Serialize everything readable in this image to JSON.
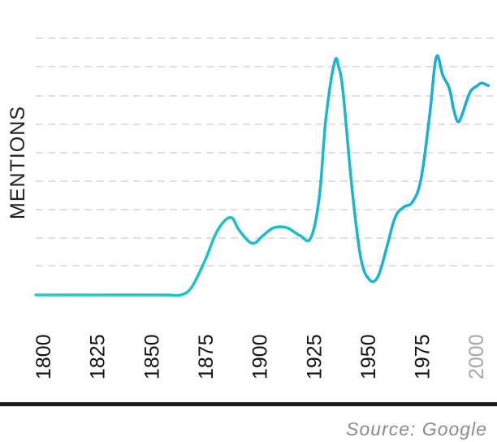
{
  "chart_data": {
    "type": "line",
    "title": "",
    "xlabel": "",
    "ylabel": "MENTIONS",
    "xlim": [
      1800,
      2010
    ],
    "ylim": [
      0,
      100
    ],
    "x_ticks": [
      "1800",
      "1825",
      "1850",
      "1875",
      "1900",
      "1925",
      "1950",
      "1975",
      "2000"
    ],
    "highlighted_tick": "2000",
    "grid": true,
    "y_tick_labels_shown": false,
    "series": [
      {
        "x": [
          1800,
          1820,
          1840,
          1860,
          1867,
          1872,
          1878,
          1884,
          1890,
          1894,
          1900,
          1905,
          1910,
          1916,
          1922,
          1927,
          1931,
          1934,
          1938,
          1940,
          1942,
          1946,
          1950,
          1954,
          1958,
          1962,
          1966,
          1970,
          1974,
          1978,
          1982,
          1985,
          1988,
          1991,
          1993,
          1995,
          1997,
          1999,
          2001,
          2004,
          2006,
          2009
        ],
        "values": [
          0,
          0,
          0,
          0,
          0,
          3,
          13,
          25,
          30,
          25,
          20,
          23,
          26,
          26,
          23,
          22,
          38,
          68,
          90,
          88,
          78,
          42,
          15,
          6,
          7,
          18,
          30,
          34,
          36,
          45,
          70,
          92,
          85,
          80,
          72,
          67,
          70,
          75,
          79,
          81,
          82,
          81
        ]
      }
    ],
    "colors": {
      "line_start": "#1fcfc0",
      "line_end": "#19acd4",
      "grid": "#d6d6d6",
      "tick": "#111111",
      "tick_muted": "#a6a6a6",
      "axis": "#1c1c1c"
    }
  },
  "source_text": "Source: Google"
}
